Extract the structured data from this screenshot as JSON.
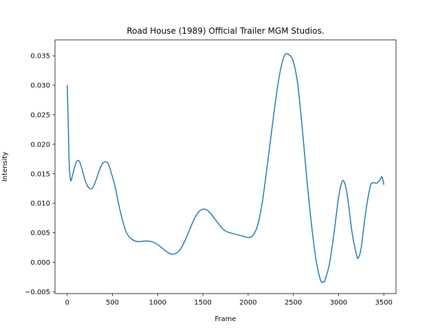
{
  "chart_data": {
    "type": "line",
    "title": "Road House (1989)  Official Trailer  MGM Studios.",
    "xlabel": "Frame",
    "ylabel": "Intensity",
    "xlim": [
      -135,
      3635
    ],
    "ylim": [
      -0.0053,
      0.0377
    ],
    "xticks": [
      0,
      500,
      1000,
      1500,
      2000,
      2500,
      3000,
      3500
    ],
    "xtick_labels": [
      "0",
      "500",
      "1000",
      "1500",
      "2000",
      "2500",
      "3000",
      "3500"
    ],
    "yticks": [
      -0.005,
      0.0,
      0.005,
      0.01,
      0.015,
      0.02,
      0.025,
      0.03,
      0.035
    ],
    "ytick_labels": [
      "−0.005",
      "0.000",
      "0.005",
      "0.010",
      "0.015",
      "0.020",
      "0.025",
      "0.030",
      "0.035"
    ],
    "grid": false,
    "line_color": "#1f77b4",
    "series": [
      {
        "x": [
          0,
          10,
          20,
          30,
          40,
          55,
          80,
          100,
          130,
          160,
          200,
          240,
          280,
          320,
          360,
          400,
          450,
          490,
          530,
          560,
          600,
          650,
          700,
          750,
          800,
          850,
          900,
          950,
          1000,
          1050,
          1100,
          1150,
          1200,
          1250,
          1300,
          1350,
          1400,
          1450,
          1500,
          1550,
          1600,
          1650,
          1700,
          1750,
          1800,
          1850,
          1900,
          1950,
          2000,
          2050,
          2100,
          2150,
          2200,
          2250,
          2300,
          2350,
          2400,
          2450,
          2500,
          2550,
          2600,
          2650,
          2700,
          2750,
          2800,
          2830,
          2850,
          2900,
          2950,
          3000,
          3040,
          3070,
          3100,
          3150,
          3200,
          3220,
          3250,
          3300,
          3350,
          3380,
          3420,
          3460,
          3480,
          3500
        ],
        "values": [
          0.03,
          0.0245,
          0.0175,
          0.0148,
          0.0138,
          0.0145,
          0.016,
          0.017,
          0.0172,
          0.016,
          0.0138,
          0.0126,
          0.0126,
          0.014,
          0.0158,
          0.0169,
          0.0168,
          0.015,
          0.0128,
          0.0105,
          0.0078,
          0.0052,
          0.0041,
          0.0036,
          0.0035,
          0.0036,
          0.0036,
          0.0034,
          0.003,
          0.0024,
          0.0018,
          0.0014,
          0.0015,
          0.0022,
          0.0036,
          0.0054,
          0.0072,
          0.0085,
          0.009,
          0.0088,
          0.008,
          0.007,
          0.006,
          0.0053,
          0.005,
          0.0048,
          0.0046,
          0.0044,
          0.0042,
          0.0045,
          0.006,
          0.0095,
          0.015,
          0.021,
          0.027,
          0.032,
          0.035,
          0.0352,
          0.034,
          0.03,
          0.0225,
          0.014,
          0.0065,
          0.0005,
          -0.003,
          -0.0033,
          -0.003,
          -0.0002,
          0.005,
          0.011,
          0.0137,
          0.0133,
          0.011,
          0.005,
          0.0012,
          0.0008,
          0.0025,
          0.0085,
          0.0128,
          0.0135,
          0.0134,
          0.014,
          0.0145,
          0.0132
        ]
      }
    ]
  }
}
